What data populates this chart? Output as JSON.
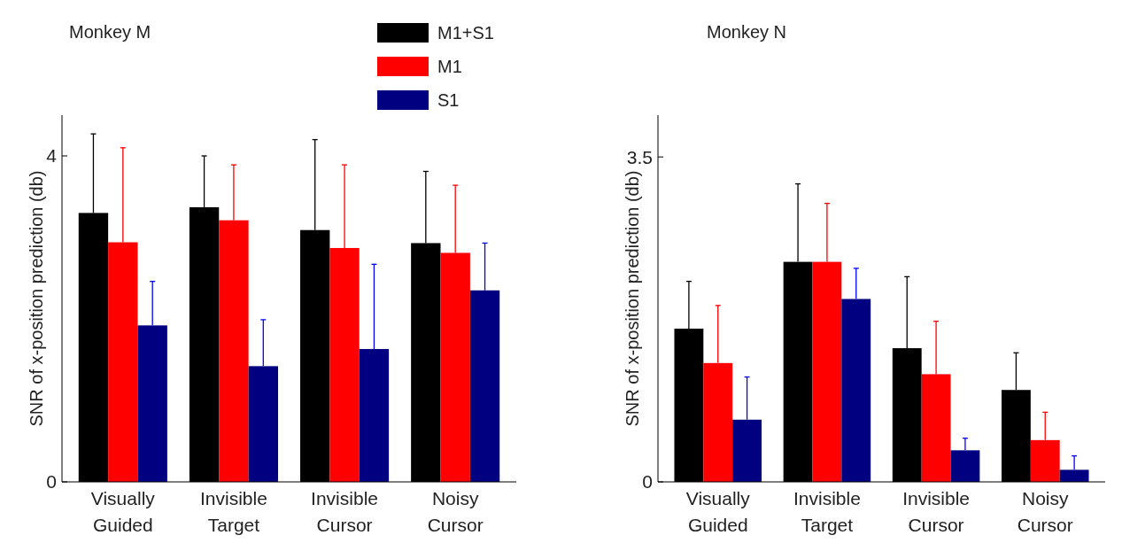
{
  "chart_data": [
    {
      "type": "bar",
      "title": "Monkey M",
      "ylabel": "SNR of x-position prediction (db)",
      "categories": [
        "Visually Guided",
        "Invisible Target",
        "Invisible Cursor",
        "Noisy Cursor"
      ],
      "ylim": [
        0,
        4.5
      ],
      "yticks": [
        0,
        4
      ],
      "legend": "top",
      "series": [
        {
          "name": "M1+S1",
          "color": "#000000",
          "values": [
            3.3,
            3.37,
            3.09,
            2.93
          ],
          "errors": [
            [
              3.3,
              4.27
            ],
            [
              3.37,
              4.0
            ],
            [
              3.09,
              4.2
            ],
            [
              2.93,
              3.81
            ]
          ]
        },
        {
          "name": "M1",
          "color": "#ff0000",
          "values": [
            2.94,
            3.21,
            2.87,
            2.81
          ],
          "errors": [
            [
              2.94,
              4.1
            ],
            [
              3.21,
              3.89
            ],
            [
              2.87,
              3.89
            ],
            [
              2.81,
              3.64
            ]
          ]
        },
        {
          "name": "S1",
          "color": "#000080",
          "values": [
            1.92,
            1.42,
            1.63,
            2.35
          ],
          "errors": [
            [
              1.92,
              2.46
            ],
            [
              1.42,
              1.99
            ],
            [
              1.63,
              2.67
            ],
            [
              2.35,
              2.93
            ]
          ]
        }
      ]
    },
    {
      "type": "bar",
      "title": "Monkey N",
      "ylabel": "SNR of x-position prediction (db)",
      "categories": [
        "Visually Guided",
        "Invisible Target",
        "Invisible Cursor",
        "Noisy Cursor"
      ],
      "ylim": [
        0,
        3.95
      ],
      "yticks": [
        0,
        3.5
      ],
      "series": [
        {
          "color": "#000000",
          "values": [
            1.65,
            2.37,
            1.44,
            0.99
          ],
          "errors": [
            [
              1.65,
              2.16
            ],
            [
              2.37,
              3.21
            ],
            [
              1.44,
              2.21
            ],
            [
              0.99,
              1.39
            ]
          ]
        },
        {
          "color": "#ff0000",
          "values": [
            1.28,
            2.37,
            1.16,
            0.45
          ],
          "errors": [
            [
              1.28,
              1.9
            ],
            [
              2.37,
              3.0
            ],
            [
              1.16,
              1.73
            ],
            [
              0.45,
              0.75
            ]
          ]
        },
        {
          "color": "#000080",
          "values": [
            0.67,
            1.97,
            0.34,
            0.13
          ],
          "errors": [
            [
              0.67,
              1.13
            ],
            [
              1.97,
              2.3
            ],
            [
              0.34,
              0.47
            ],
            [
              0.13,
              0.28
            ]
          ]
        }
      ]
    }
  ]
}
